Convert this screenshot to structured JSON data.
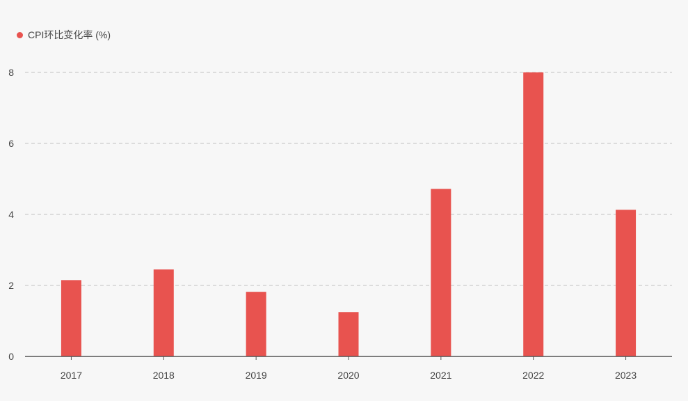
{
  "chart_data": {
    "type": "bar",
    "title": "",
    "xlabel": "",
    "ylabel": "",
    "categories": [
      "2017",
      "2018",
      "2019",
      "2020",
      "2021",
      "2022",
      "2023"
    ],
    "series": [
      {
        "name": "CPI环比变化率 (%)",
        "color": "#e8534f",
        "values": [
          2.15,
          2.45,
          1.82,
          1.25,
          4.72,
          8.0,
          4.13
        ]
      }
    ],
    "ylim": [
      0,
      8
    ],
    "yticks": [
      "0",
      "2",
      "4",
      "6",
      "8"
    ],
    "grid": true,
    "legend_position": "top-left"
  }
}
